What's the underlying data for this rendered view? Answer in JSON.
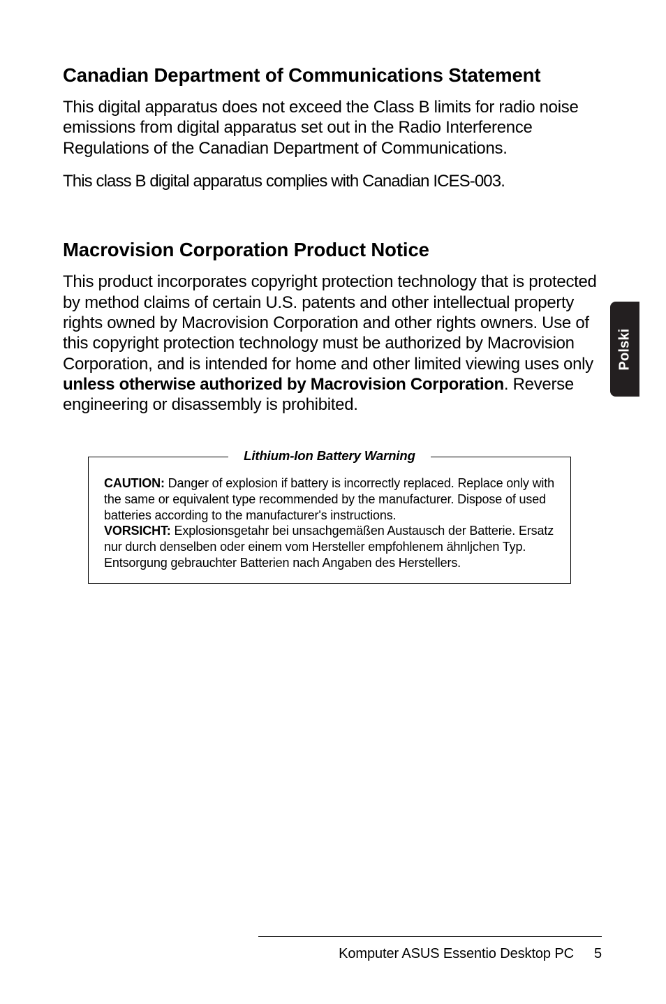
{
  "sideTab": {
    "label": "Polski",
    "bg": "#231f20",
    "fg": "#ffffff"
  },
  "section1": {
    "heading": "Canadian Department of Communications Statement",
    "p1": "This digital apparatus does not exceed the Class B limits for radio noise emissions from digital apparatus set out in the Radio Interference Regulations of the Canadian Department of Communications.",
    "p2": "This class B digital apparatus complies with Canadian ICES-003."
  },
  "section2": {
    "heading": "Macrovision Corporation Product Notice",
    "p1_a": "This product incorporates copyright protection technology that is protected by method claims of certain U.S. patents and other intellectual property rights owned by Macrovision Corporation and other rights owners. Use of this copyright protection technology must be authorized by Macrovision Corporation, and is intended for home and other limited viewing uses only ",
    "p1_bold": "unless otherwise authorized by Macrovision Corporation",
    "p1_b": ". Reverse engineering or disassembly is prohibited."
  },
  "warning": {
    "title": "Lithium-Ion Battery Warning",
    "cautionLabel": "CAUTION:",
    "cautionText": " Danger of explosion if battery is incorrectly replaced. Replace only with the same or equivalent type recommended by the manufacturer. Dispose of used batteries according to the manufacturer's instructions.",
    "vorsichtLabel": "VORSICHT:",
    "vorsichtText": " Explosionsgetahr bei unsachgemäßen Austausch der Batterie. Ersatz nur durch denselben oder einem vom Hersteller empfohlenem ähnljchen Typ. Entsorgung gebrauchter Batterien nach Angaben des Herstellers."
  },
  "footer": {
    "text": "Komputer ASUS Essentio Desktop PC",
    "page": "5"
  }
}
